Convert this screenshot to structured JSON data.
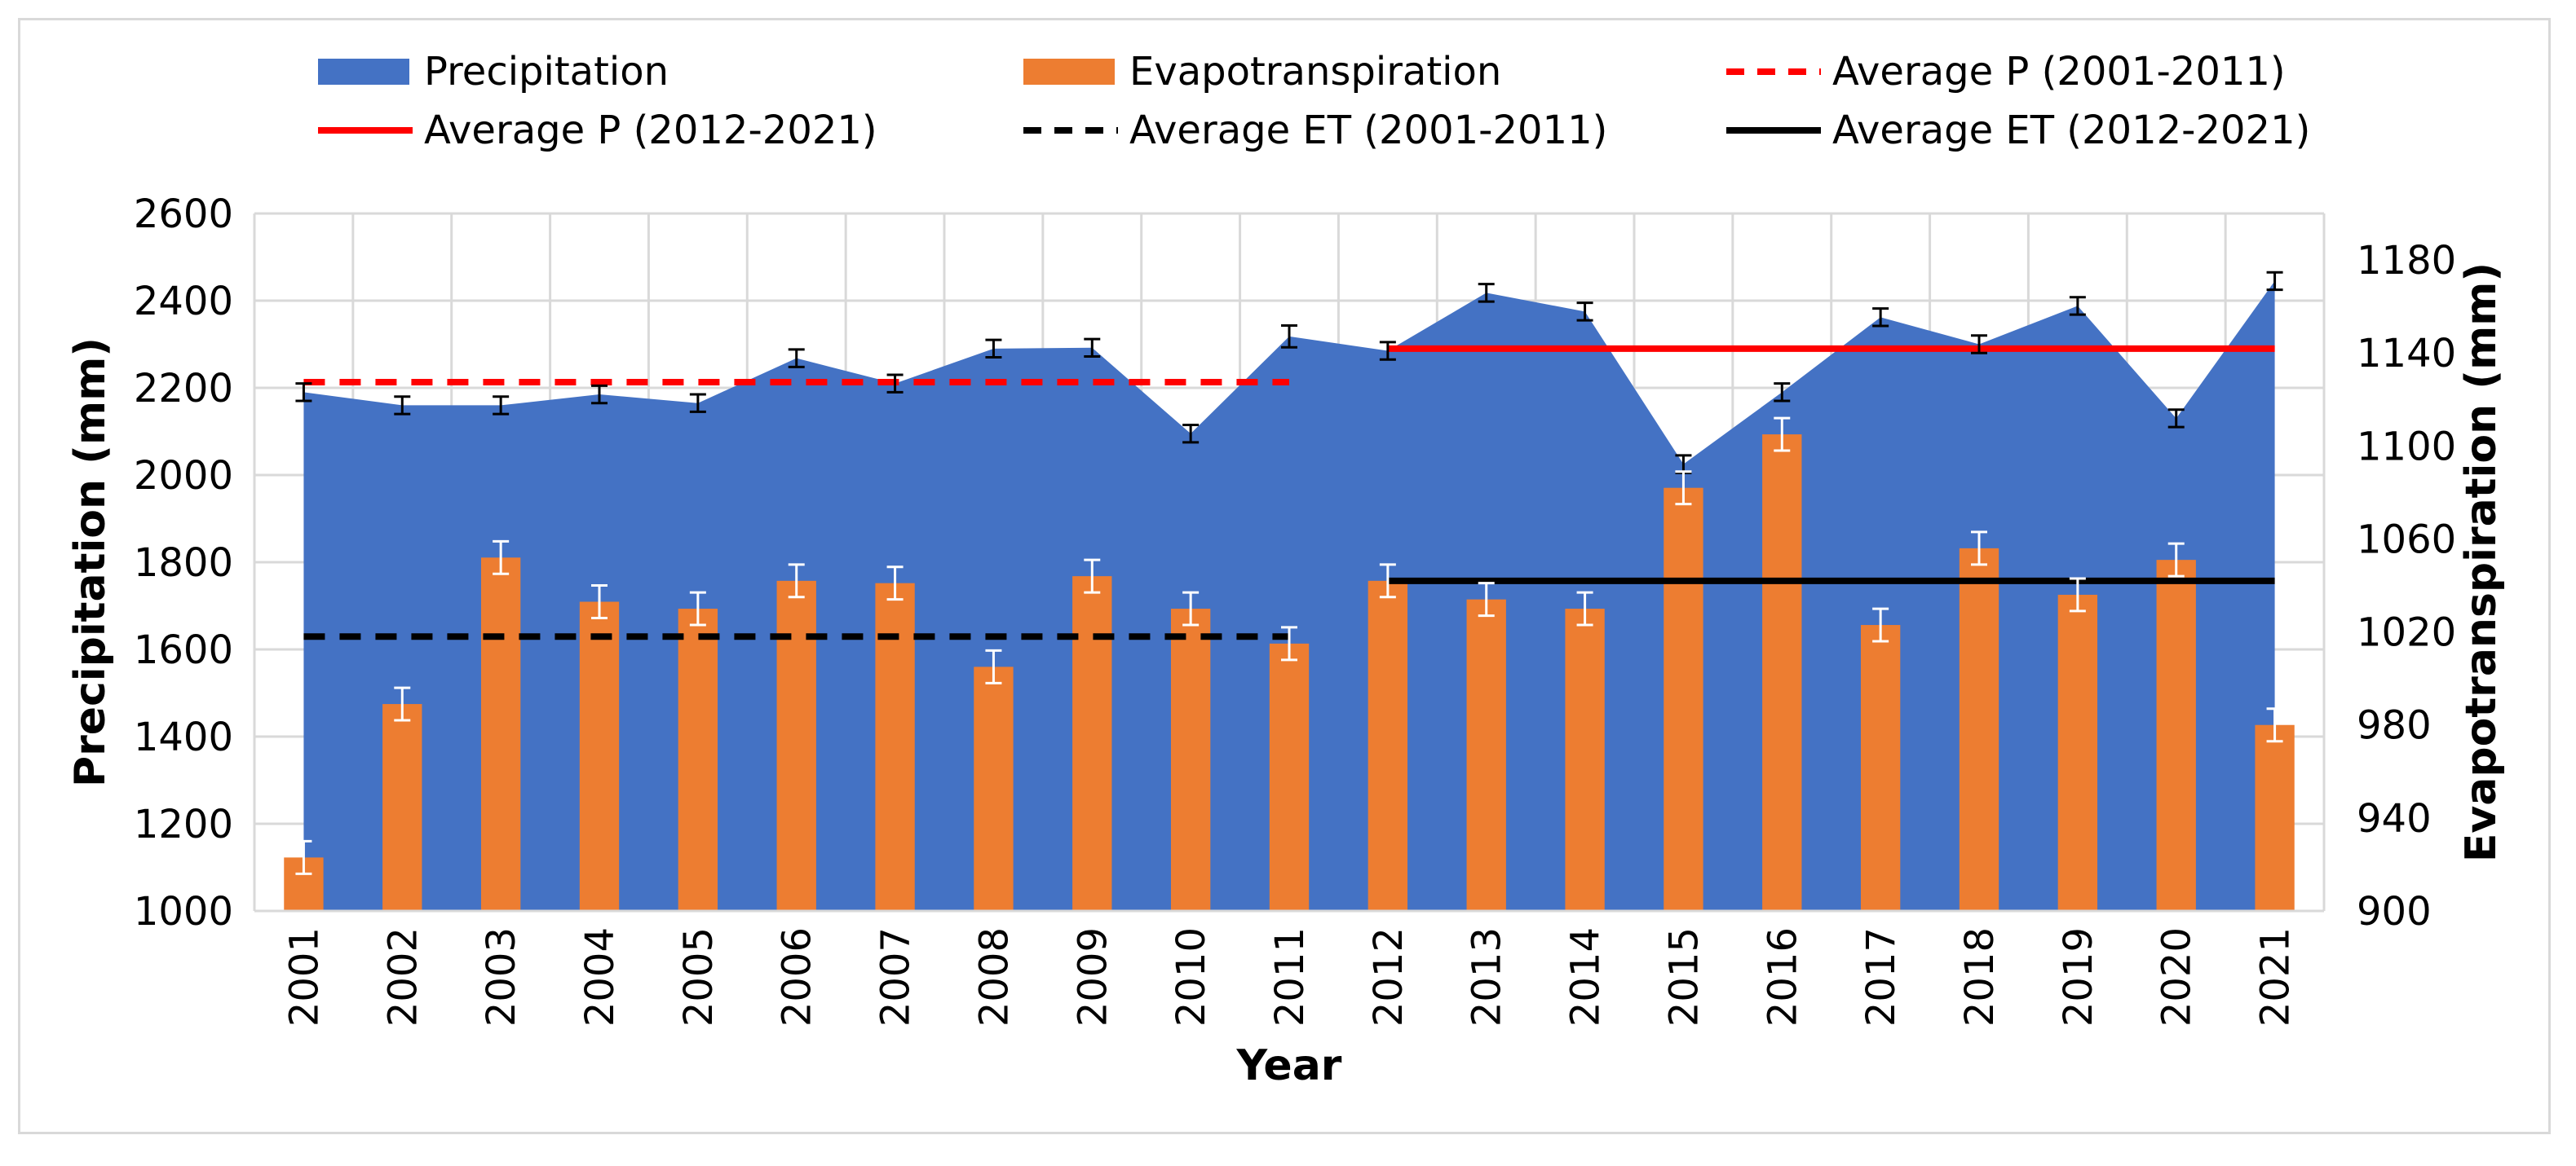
{
  "chart_data": {
    "type": "area+bar",
    "xlabel": "Year",
    "ylabel_left": "Precipitation (mm)",
    "ylabel_right": "Evapotranspiration (mm)",
    "categories": [
      "2001",
      "2002",
      "2003",
      "2004",
      "2005",
      "2006",
      "2007",
      "2008",
      "2009",
      "2010",
      "2011",
      "2012",
      "2013",
      "2014",
      "2015",
      "2016",
      "2017",
      "2018",
      "2019",
      "2020",
      "2021"
    ],
    "y_left": {
      "min": 1000,
      "max": 2600,
      "ticks": [
        1000,
        1200,
        1400,
        1600,
        1800,
        2000,
        2200,
        2400,
        2600
      ]
    },
    "y_right": {
      "min": 900,
      "max": 1200,
      "ticks": [
        900,
        940,
        980,
        1020,
        1060,
        1100,
        1140,
        1180
      ]
    },
    "grid": true,
    "legend_position": "top",
    "series": [
      {
        "name": "Precipitation",
        "kind": "area",
        "axis": "left",
        "color": "#4472c4",
        "values": [
          2190,
          2160,
          2160,
          2185,
          2165,
          2268,
          2210,
          2290,
          2292,
          2095,
          2318,
          2285,
          2418,
          2375,
          2025,
          2190,
          2362,
          2300,
          2388,
          2130,
          2445
        ],
        "error": [
          20,
          20,
          20,
          20,
          20,
          20,
          20,
          20,
          20,
          20,
          25,
          20,
          20,
          20,
          20,
          20,
          20,
          20,
          20,
          20,
          20
        ]
      },
      {
        "name": "Evapotranspiration",
        "kind": "bar",
        "axis": "right",
        "color": "#ed7d31",
        "values": [
          923,
          989,
          1052,
          1033,
          1030,
          1042,
          1041,
          1005,
          1044,
          1030,
          1015,
          1042,
          1034,
          1030,
          1082,
          1105,
          1023,
          1056,
          1036,
          1051,
          980
        ],
        "error": [
          7,
          7,
          7,
          7,
          7,
          7,
          7,
          7,
          7,
          7,
          7,
          7,
          7,
          7,
          7,
          7,
          7,
          7,
          7,
          7,
          7
        ]
      },
      {
        "name": "Average P (2001-2011)",
        "kind": "line",
        "axis": "left",
        "color": "#ff0000",
        "dash": true,
        "from": "2001",
        "to": "2011",
        "value": 2213
      },
      {
        "name": "Average P (2012-2021)",
        "kind": "line",
        "axis": "left",
        "color": "#ff0000",
        "dash": false,
        "from": "2012",
        "to": "2021",
        "value": 2290
      },
      {
        "name": "Average ET (2001-2011)",
        "kind": "line",
        "axis": "right",
        "color": "#000000",
        "dash": true,
        "from": "2001",
        "to": "2011",
        "value": 1018
      },
      {
        "name": "Average ET (2012-2021)",
        "kind": "line",
        "axis": "right",
        "color": "#000000",
        "dash": false,
        "from": "2012",
        "to": "2021",
        "value": 1042
      }
    ],
    "legend": [
      {
        "label": "Precipitation",
        "symbol": "box",
        "color": "#4472c4"
      },
      {
        "label": "Evapotranspiration",
        "symbol": "box",
        "color": "#ed7d31"
      },
      {
        "label": "Average P (2001-2011)",
        "symbol": "dash",
        "color": "#ff0000"
      },
      {
        "label": "Average P (2012-2021)",
        "symbol": "line",
        "color": "#ff0000"
      },
      {
        "label": "Average ET (2001-2011)",
        "symbol": "dash",
        "color": "#000000"
      },
      {
        "label": "Average ET (2012-2021)",
        "symbol": "line",
        "color": "#000000"
      }
    ]
  }
}
